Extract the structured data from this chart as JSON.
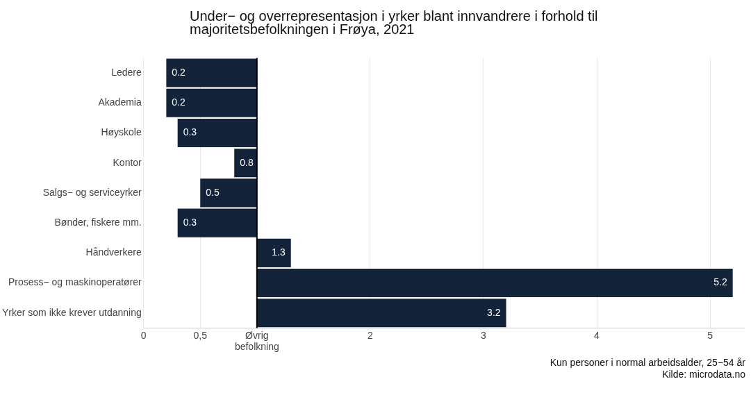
{
  "chart_data": {
    "type": "bar",
    "orientation": "horizontal",
    "title": "Under− og overrepresentasjon i yrker blant innvandrere i forhold til majoritetsbefolkningen i Frøya, 2021",
    "categories": [
      "Ledere",
      "Akademia",
      "Høyskole",
      "Kontor",
      "Salgs− og serviceyrker",
      "Bønder, fiskere mm.",
      "Håndverkere",
      "Prosess− og maskinoperatører",
      "Yrker som ikke krever utdanning"
    ],
    "base": [
      1,
      1,
      1,
      1,
      1,
      1,
      1,
      1,
      1
    ],
    "values": [
      -0.8,
      -0.8,
      -0.7,
      -0.2,
      -0.5,
      -0.7,
      0.3,
      4.2,
      2.2
    ],
    "value_labels": [
      "0.2",
      "0.2",
      "0.3",
      "0.8",
      "0.5",
      "0.3",
      "1.3",
      "5.2",
      "3.2"
    ],
    "color": "#13233a",
    "xlim": [
      0,
      5.3
    ],
    "xticks": [
      0,
      {
        "value": 0.5,
        "label": "0,5"
      },
      {
        "value": 1,
        "label": "Øvrig befolkning"
      },
      2,
      3,
      4,
      5
    ],
    "grid": "x",
    "ref_lines": [
      {
        "axis": "x",
        "value": 1,
        "label": null,
        "color": "#000000"
      }
    ],
    "annotations": [
      "Kun personer i normal arbeidsalder, 25−54 år",
      "Kilde: microdata.no"
    ]
  }
}
